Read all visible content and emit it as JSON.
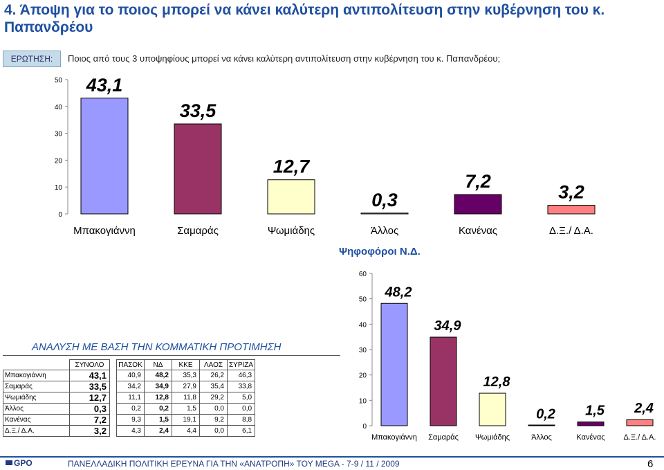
{
  "title": "4.  Άποψη για το ποιος μπορεί να κάνει καλύτερη αντιπολίτευση στην κυβέρνηση του κ. Παπανδρέου",
  "question": {
    "label": "ΕΡΩΤΗΣΗ:",
    "text": "Ποιος από τους 3 υποψηφίους μπορεί να κάνει καλύτερη αντιπολίτευση στην κυβέρνηση του κ. Παπανδρέου;"
  },
  "chart_data": [
    {
      "type": "bar",
      "title": "",
      "categories": [
        "Μπακογιάννη",
        "Σαμαράς",
        "Ψωμιάδης",
        "Άλλος",
        "Κανένας",
        "Δ.Ξ./ Δ.Α."
      ],
      "values": [
        43.1,
        33.5,
        12.7,
        0.3,
        7.2,
        3.2
      ],
      "value_labels": [
        "43,1",
        "33,5",
        "12,7",
        "0,3",
        "7,2",
        "3,2"
      ],
      "colors": [
        "#9999ff",
        "#993366",
        "#ffffcc",
        "#ccffff",
        "#660066",
        "#ff8080"
      ],
      "ylim": [
        0,
        50
      ],
      "yticks": [
        0,
        10,
        20,
        30,
        40,
        50
      ],
      "grid": false,
      "legend": "none"
    },
    {
      "type": "bar",
      "title": "Ψηφοφόροι Ν.Δ.",
      "categories": [
        "Μπακογιάννη",
        "Σαμαράς",
        "Ψωμιάδης",
        "Άλλος",
        "Κανένας",
        "Δ.Ξ./ Δ.Α."
      ],
      "values": [
        48.2,
        34.9,
        12.8,
        0.2,
        1.5,
        2.4
      ],
      "value_labels": [
        "48,2",
        "34,9",
        "12,8",
        "0,2",
        "1,5",
        "2,4"
      ],
      "colors": [
        "#9999ff",
        "#993366",
        "#ffffcc",
        "#ccffff",
        "#660066",
        "#ff8080"
      ],
      "ylim": [
        0,
        60
      ],
      "yticks": [
        0,
        10,
        20,
        30,
        40,
        50,
        60
      ],
      "grid": false,
      "legend": "none"
    }
  ],
  "analysis": {
    "title": "ΑΝΑΛΥΣΗ ΜΕ ΒΑΣΗ ΤΗΝ ΚΟΜΜΑΤΙΚΗ ΠΡΟΤΙΜΗΣΗ",
    "total_header": "ΣΥΝΟΛΟ",
    "headers": [
      "ΠΑΣΟΚ",
      "ΝΔ",
      "ΚΚΕ",
      "ΛΑΟΣ",
      "ΣΥΡΙΖΑ"
    ],
    "rows": [
      {
        "label": "Μπακογιάννη",
        "total": "43,1",
        "values": [
          "40,9",
          "48,2",
          "35,3",
          "26,2",
          "46,3"
        ]
      },
      {
        "label": "Σαμαράς",
        "total": "33,5",
        "values": [
          "34,2",
          "34,9",
          "27,9",
          "35,4",
          "33,8"
        ]
      },
      {
        "label": "Ψωμιάδης",
        "total": "12,7",
        "values": [
          "11,1",
          "12,8",
          "11,8",
          "29,2",
          "5,0"
        ]
      },
      {
        "label": "Άλλος",
        "total": "0,3",
        "values": [
          "0,2",
          "0,2",
          "1,5",
          "0,0",
          "0,0"
        ]
      },
      {
        "label": "Κανένας",
        "total": "7,2",
        "values": [
          "9,3",
          "1,5",
          "19,1",
          "9,2",
          "8,8"
        ]
      },
      {
        "label": "Δ.Ξ./ Δ.Α.",
        "total": "3,2",
        "values": [
          "4,3",
          "2,4",
          "4,4",
          "0,0",
          "6,1"
        ]
      }
    ]
  },
  "footer": {
    "logo_text": "GPO",
    "text": "ΠΑΝΕΛΛΑΔΙΚΗ ΠΟΛΙΤΙΚΗ ΕΡΕΥΝΑ ΓΙΑ ΤΗΝ «ΑΝΑΤΡΟΠΗ» ΤΟΥ MEGA  -  7-9  / 11 / 2009",
    "page_number": "6"
  },
  "colors": {
    "title": "#1f4fa0",
    "question_box": "#c5dbe8"
  }
}
